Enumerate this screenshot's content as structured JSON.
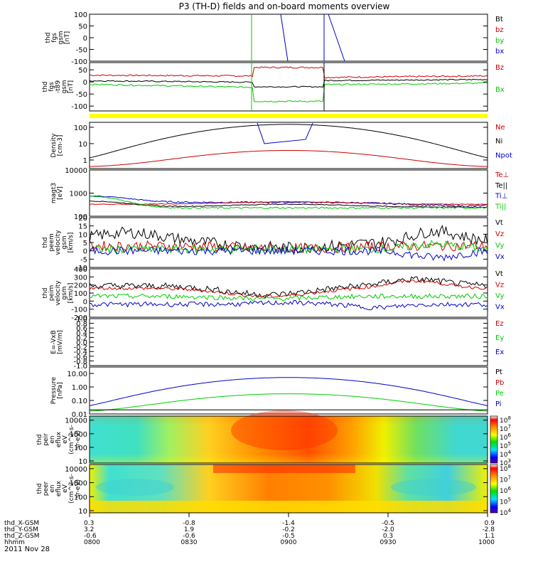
{
  "title": "P3 (TH-D) fields and on-board moments overview",
  "date_label": "2011 Nov 28",
  "time_axis": {
    "row_labels": [
      "thd_X-GSM",
      "thd_Y-GSM",
      "thd_Z-GSM",
      "hhmm"
    ],
    "columns": [
      {
        "x": "0.3",
        "y": "3.2",
        "z": "-0.6",
        "hhmm": "0800"
      },
      {
        "x": "-0.8",
        "y": "1.9",
        "z": "-0.6",
        "hhmm": "0830"
      },
      {
        "x": "-1.4",
        "y": "-0.2",
        "z": "-0.5",
        "hhmm": "0900"
      },
      {
        "x": "-0.5",
        "y": "-2.0",
        "z": "0.3",
        "hhmm": "0930"
      },
      {
        "x": "0.9",
        "y": "-2.8",
        "z": "1.1",
        "hhmm": "1000"
      }
    ]
  },
  "colorbar1": {
    "labels": [
      "10^8",
      "10^7",
      "10^6",
      "10^5",
      "10^4",
      "10^3"
    ]
  },
  "colorbar2": {
    "labels": [
      "10^8",
      "10^7",
      "10^6",
      "10^5",
      "10^4"
    ]
  },
  "chart_data": [
    {
      "type": "line",
      "panel": "fgs",
      "ylabel": [
        "thd",
        "fgs",
        "gsm",
        "[nT]"
      ],
      "ylim": [
        -100,
        100
      ],
      "yticks": [
        "100",
        "50",
        "0",
        "-50",
        "-100"
      ],
      "legend": [
        {
          "name": "Bt",
          "color": "#000000"
        },
        {
          "name": "bz",
          "color": "#cc0000"
        },
        {
          "name": "by",
          "color": "#00cc00"
        },
        {
          "name": "bx",
          "color": "#0000cc"
        }
      ]
    },
    {
      "type": "line",
      "panel": "fgs-t89",
      "ylabel": [
        "thd",
        "fgs",
        "-t89",
        "gsm",
        "[nT]"
      ],
      "ylim": [
        -120,
        80
      ],
      "yticks": [
        "50",
        "0",
        "-50",
        "-100"
      ],
      "legend": [
        {
          "name": "Bz",
          "color": "#cc0000"
        },
        {
          "name": "Bx",
          "color": "#00cc00"
        }
      ]
    },
    {
      "type": "line",
      "panel": "density",
      "scale": "log",
      "ylabel": [
        "Density",
        "[cm-3]"
      ],
      "ylim": [
        0.3,
        200
      ],
      "yticks": [
        "100",
        "10",
        "1"
      ],
      "legend": [
        {
          "name": "Ne",
          "color": "#cc0000"
        },
        {
          "name": "Ni",
          "color": "#000000"
        },
        {
          "name": "Npot",
          "color": "#0000cc"
        }
      ]
    },
    {
      "type": "line",
      "panel": "temperature",
      "scale": "log",
      "ylabel": [
        "magt3",
        "[eV]"
      ],
      "ylim": [
        100,
        10000
      ],
      "yticks": [
        "10000",
        "1000",
        "100"
      ],
      "legend": [
        {
          "name": "Te⊥",
          "color": "#cc0000"
        },
        {
          "name": "Te||",
          "color": "#000000"
        },
        {
          "name": "Ti⊥",
          "color": "#0000cc"
        },
        {
          "name": "Ti||",
          "color": "#00cc00"
        }
      ]
    },
    {
      "type": "line",
      "panel": "electron-velocity",
      "ylabel": [
        "thd",
        "peem",
        "velocity",
        "gsm",
        "[km/s]"
      ],
      "ylim": [
        -10,
        20
      ],
      "yticks": [
        "20",
        "15",
        "10",
        "5",
        "0",
        "-5",
        "-10"
      ],
      "legend": [
        {
          "name": "Vt",
          "color": "#000000"
        },
        {
          "name": "Vz",
          "color": "#cc0000"
        },
        {
          "name": "Vy",
          "color": "#00cc00"
        },
        {
          "name": "Vx",
          "color": "#0000cc"
        }
      ]
    },
    {
      "type": "line",
      "panel": "ion-velocity",
      "ylabel": [
        "thd",
        "peim",
        "velocity",
        "gsm",
        "[km/s]"
      ],
      "ylim": [
        -200,
        400
      ],
      "yticks": [
        "400",
        "300",
        "200",
        "100",
        "0",
        "-100",
        "-200"
      ],
      "legend": [
        {
          "name": "Vt",
          "color": "#000000"
        },
        {
          "name": "Vz",
          "color": "#cc0000"
        },
        {
          "name": "Vy",
          "color": "#00cc00"
        },
        {
          "name": "Vx",
          "color": "#0000cc"
        }
      ]
    },
    {
      "type": "line",
      "panel": "efield",
      "ylabel": [
        "E=-VxB",
        "[mV/m]"
      ],
      "ylim": [
        -1,
        1
      ],
      "yticks": [
        "1.0",
        "0.8",
        "0.6",
        "0.4",
        "0.2",
        "0.0",
        "-0.2",
        "-0.4",
        "-0.6",
        "-0.8",
        "-1.0"
      ],
      "legend": [
        {
          "name": "Ez",
          "color": "#cc0000"
        },
        {
          "name": "Ey",
          "color": "#00cc00"
        },
        {
          "name": "Ex",
          "color": "#0000cc"
        }
      ]
    },
    {
      "type": "line",
      "panel": "pressure",
      "scale": "log",
      "ylabel": [
        "Pressure",
        "[nPa]"
      ],
      "ylim": [
        0.01,
        30
      ],
      "yticks": [
        "10.00",
        "1.00",
        "0.10",
        "0.01"
      ],
      "legend": [
        {
          "name": "Pt",
          "color": "#000000"
        },
        {
          "name": "Pb",
          "color": "#cc0000"
        },
        {
          "name": "Pe",
          "color": "#00cc00"
        },
        {
          "name": "Pi",
          "color": "#0000cc"
        }
      ]
    },
    {
      "type": "heatmap",
      "panel": "ion-spectrogram",
      "scale": "log",
      "ylabel": [
        "thd",
        "peir",
        "en",
        "eflux",
        "eV",
        "(cm^2-s-",
        "sr-eV)"
      ],
      "ylim": [
        7,
        20000
      ],
      "yticks": [
        "10000",
        "1000",
        "100",
        "10"
      ]
    },
    {
      "type": "heatmap",
      "panel": "electron-spectrogram",
      "scale": "log",
      "ylabel": [
        "thd",
        "peer",
        "en",
        "eflux",
        "eV",
        "(cm^2-s-",
        "sr-eV)"
      ],
      "ylim": [
        7,
        20000
      ],
      "yticks": [
        "10000",
        "1000",
        "100",
        "10"
      ]
    }
  ]
}
